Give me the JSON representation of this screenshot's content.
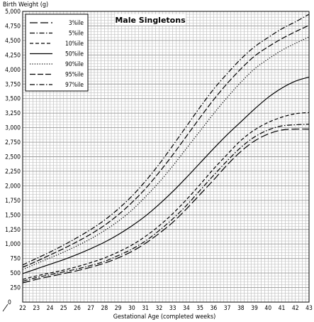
{
  "chart_data": {
    "type": "line",
    "title": "Male Singletons",
    "ylabel": "Birth Weight (g)",
    "xlabel": "Gestational Age (completed weeks)",
    "xlim": [
      22,
      43
    ],
    "ylim": [
      0,
      5000
    ],
    "grid": true,
    "legend_position": "top-left",
    "x_ticks": [
      "22",
      "23",
      "24",
      "25",
      "26",
      "27",
      "28",
      "29",
      "30",
      "31",
      "32",
      "33",
      "34",
      "35",
      "36",
      "37",
      "38",
      "39",
      "40",
      "41",
      "42",
      "43"
    ],
    "y_ticks": [
      "250",
      "500",
      "750",
      "1,000",
      "1,250",
      "1,500",
      "1,750",
      "2,000",
      "2,250",
      "2,500",
      "2,750",
      "3,000",
      "3,250",
      "3,500",
      "3,750",
      "4,000",
      "4,250",
      "4,500",
      "4,750",
      "5,000"
    ],
    "x": [
      22,
      23,
      24,
      25,
      26,
      27,
      28,
      29,
      30,
      31,
      32,
      33,
      34,
      35,
      36,
      37,
      38,
      39,
      40,
      41,
      42,
      43
    ],
    "series": [
      {
        "name": "3%ile",
        "dash": "long",
        "values": [
          330,
          390,
          440,
          490,
          540,
          600,
          670,
          760,
          870,
          1010,
          1180,
          1370,
          1600,
          1850,
          2100,
          2360,
          2590,
          2770,
          2890,
          2960,
          2975,
          2975
        ]
      },
      {
        "name": "5%ile",
        "dash": "dashdot",
        "values": [
          360,
          420,
          470,
          520,
          570,
          630,
          700,
          800,
          910,
          1050,
          1230,
          1430,
          1660,
          1920,
          2180,
          2430,
          2660,
          2840,
          2960,
          3030,
          3050,
          3060
        ]
      },
      {
        "name": "10%ile",
        "dash": "short",
        "values": [
          390,
          450,
          500,
          550,
          610,
          680,
          760,
          860,
          980,
          1130,
          1310,
          1520,
          1760,
          2020,
          2290,
          2540,
          2780,
          2960,
          3090,
          3180,
          3240,
          3260
        ]
      },
      {
        "name": "50%ile",
        "dash": "solid",
        "values": [
          490,
          570,
          650,
          730,
          820,
          920,
          1030,
          1160,
          1310,
          1480,
          1680,
          1900,
          2140,
          2390,
          2640,
          2880,
          3100,
          3320,
          3520,
          3680,
          3800,
          3870
        ]
      },
      {
        "name": "90%ile",
        "dash": "dotted",
        "values": [
          560,
          660,
          760,
          860,
          970,
          1090,
          1230,
          1390,
          1580,
          1810,
          2060,
          2340,
          2640,
          2940,
          3240,
          3520,
          3780,
          4010,
          4180,
          4330,
          4450,
          4560
        ]
      },
      {
        "name": "95%ile",
        "dash": "longdash",
        "values": [
          600,
          700,
          810,
          920,
          1040,
          1170,
          1320,
          1500,
          1710,
          1950,
          2230,
          2530,
          2850,
          3170,
          3480,
          3760,
          4010,
          4230,
          4390,
          4530,
          4650,
          4760
        ]
      },
      {
        "name": "97%ile",
        "dash": "dashdot",
        "values": [
          640,
          750,
          860,
          980,
          1110,
          1250,
          1410,
          1600,
          1820,
          2080,
          2370,
          2690,
          3020,
          3350,
          3660,
          3930,
          4180,
          4390,
          4550,
          4700,
          4820,
          4950
        ]
      }
    ]
  }
}
